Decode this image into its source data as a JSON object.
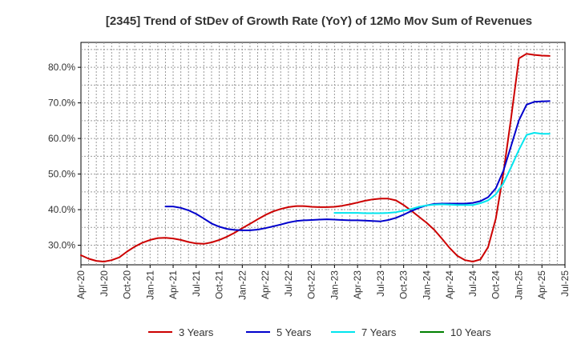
{
  "chart_data": {
    "type": "line",
    "title": "[2345]  Trend of StDev of Growth Rate (YoY) of 12Mo Mov Sum of Revenues",
    "xlabel": "",
    "ylabel": "",
    "ylim": [
      0.245,
      0.87
    ],
    "xlim": [
      "2020-04",
      "2025-07"
    ],
    "yticks": [
      0.3,
      0.4,
      0.5,
      0.6,
      0.7,
      0.8
    ],
    "ytick_labels": [
      "30.0%",
      "40.0%",
      "50.0%",
      "60.0%",
      "70.0%",
      "80.0%"
    ],
    "xtick_dates": [
      "2020-04",
      "2020-07",
      "2020-10",
      "2021-01",
      "2021-04",
      "2021-07",
      "2021-10",
      "2022-01",
      "2022-04",
      "2022-07",
      "2022-10",
      "2023-01",
      "2023-04",
      "2023-07",
      "2023-10",
      "2024-01",
      "2024-04",
      "2024-07",
      "2024-10",
      "2025-01",
      "2025-04",
      "2025-07"
    ],
    "xtick_labels": [
      "Apr-20",
      "Jul-20",
      "Oct-20",
      "Jan-21",
      "Apr-21",
      "Jul-21",
      "Oct-21",
      "Jan-22",
      "Apr-22",
      "Jul-22",
      "Oct-22",
      "Jan-23",
      "Apr-23",
      "Jul-23",
      "Oct-23",
      "Jan-24",
      "Apr-24",
      "Jul-24",
      "Oct-24",
      "Jan-25",
      "Apr-25",
      "Jul-25"
    ],
    "grid": true,
    "legend_position": "bottom",
    "series": [
      {
        "name": "3 Years",
        "color": "#cc0000",
        "points": [
          [
            "2020-04",
            0.272
          ],
          [
            "2020-05",
            0.262
          ],
          [
            "2020-06",
            0.256
          ],
          [
            "2020-07",
            0.254
          ],
          [
            "2020-08",
            0.258
          ],
          [
            "2020-09",
            0.266
          ],
          [
            "2020-10",
            0.282
          ],
          [
            "2020-11",
            0.296
          ],
          [
            "2020-12",
            0.307
          ],
          [
            "2021-01",
            0.315
          ],
          [
            "2021-02",
            0.32
          ],
          [
            "2021-03",
            0.321
          ],
          [
            "2021-04",
            0.319
          ],
          [
            "2021-05",
            0.315
          ],
          [
            "2021-06",
            0.309
          ],
          [
            "2021-07",
            0.305
          ],
          [
            "2021-08",
            0.304
          ],
          [
            "2021-09",
            0.308
          ],
          [
            "2021-10",
            0.315
          ],
          [
            "2021-11",
            0.324
          ],
          [
            "2021-12",
            0.335
          ],
          [
            "2022-01",
            0.348
          ],
          [
            "2022-02",
            0.36
          ],
          [
            "2022-03",
            0.373
          ],
          [
            "2022-04",
            0.385
          ],
          [
            "2022-05",
            0.395
          ],
          [
            "2022-06",
            0.402
          ],
          [
            "2022-07",
            0.407
          ],
          [
            "2022-08",
            0.41
          ],
          [
            "2022-09",
            0.41
          ],
          [
            "2022-10",
            0.408
          ],
          [
            "2022-11",
            0.407
          ],
          [
            "2022-12",
            0.407
          ],
          [
            "2023-01",
            0.408
          ],
          [
            "2023-02",
            0.411
          ],
          [
            "2023-03",
            0.415
          ],
          [
            "2023-04",
            0.42
          ],
          [
            "2023-05",
            0.425
          ],
          [
            "2023-06",
            0.429
          ],
          [
            "2023-07",
            0.431
          ],
          [
            "2023-08",
            0.431
          ],
          [
            "2023-09",
            0.426
          ],
          [
            "2023-10",
            0.413
          ],
          [
            "2023-11",
            0.397
          ],
          [
            "2023-12",
            0.38
          ],
          [
            "2024-01",
            0.363
          ],
          [
            "2024-02",
            0.343
          ],
          [
            "2024-03",
            0.318
          ],
          [
            "2024-04",
            0.292
          ],
          [
            "2024-05",
            0.27
          ],
          [
            "2024-06",
            0.258
          ],
          [
            "2024-07",
            0.254
          ],
          [
            "2024-08",
            0.26
          ],
          [
            "2024-09",
            0.295
          ],
          [
            "2024-10",
            0.375
          ],
          [
            "2024-11",
            0.505
          ],
          [
            "2024-12",
            0.66
          ],
          [
            "2025-01",
            0.825
          ],
          [
            "2025-02",
            0.838
          ],
          [
            "2025-03",
            0.835
          ],
          [
            "2025-04",
            0.833
          ],
          [
            "2025-05",
            0.832
          ]
        ]
      },
      {
        "name": "5 Years",
        "color": "#0000cc",
        "points": [
          [
            "2021-03",
            0.409
          ],
          [
            "2021-04",
            0.409
          ],
          [
            "2021-05",
            0.405
          ],
          [
            "2021-06",
            0.398
          ],
          [
            "2021-07",
            0.388
          ],
          [
            "2021-08",
            0.375
          ],
          [
            "2021-09",
            0.361
          ],
          [
            "2021-10",
            0.352
          ],
          [
            "2021-11",
            0.346
          ],
          [
            "2021-12",
            0.343
          ],
          [
            "2022-01",
            0.342
          ],
          [
            "2022-02",
            0.342
          ],
          [
            "2022-03",
            0.344
          ],
          [
            "2022-04",
            0.348
          ],
          [
            "2022-05",
            0.353
          ],
          [
            "2022-06",
            0.358
          ],
          [
            "2022-07",
            0.364
          ],
          [
            "2022-08",
            0.368
          ],
          [
            "2022-09",
            0.37
          ],
          [
            "2022-10",
            0.371
          ],
          [
            "2022-11",
            0.372
          ],
          [
            "2022-12",
            0.373
          ],
          [
            "2023-01",
            0.372
          ],
          [
            "2023-02",
            0.371
          ],
          [
            "2023-03",
            0.37
          ],
          [
            "2023-04",
            0.37
          ],
          [
            "2023-05",
            0.369
          ],
          [
            "2023-06",
            0.368
          ],
          [
            "2023-07",
            0.367
          ],
          [
            "2023-08",
            0.371
          ],
          [
            "2023-09",
            0.377
          ],
          [
            "2023-10",
            0.386
          ],
          [
            "2023-11",
            0.396
          ],
          [
            "2023-12",
            0.405
          ],
          [
            "2024-01",
            0.412
          ],
          [
            "2024-02",
            0.416
          ],
          [
            "2024-03",
            0.417
          ],
          [
            "2024-04",
            0.417
          ],
          [
            "2024-05",
            0.417
          ],
          [
            "2024-06",
            0.417
          ],
          [
            "2024-07",
            0.419
          ],
          [
            "2024-08",
            0.424
          ],
          [
            "2024-09",
            0.435
          ],
          [
            "2024-10",
            0.46
          ],
          [
            "2024-11",
            0.51
          ],
          [
            "2024-12",
            0.58
          ],
          [
            "2025-01",
            0.651
          ],
          [
            "2025-02",
            0.695
          ],
          [
            "2025-03",
            0.703
          ],
          [
            "2025-04",
            0.704
          ],
          [
            "2025-05",
            0.705
          ]
        ]
      },
      {
        "name": "7 Years",
        "color": "#00e5ee",
        "points": [
          [
            "2023-01",
            0.391
          ],
          [
            "2023-02",
            0.391
          ],
          [
            "2023-03",
            0.391
          ],
          [
            "2023-04",
            0.391
          ],
          [
            "2023-05",
            0.39
          ],
          [
            "2023-06",
            0.39
          ],
          [
            "2023-07",
            0.39
          ],
          [
            "2023-08",
            0.391
          ],
          [
            "2023-09",
            0.393
          ],
          [
            "2023-10",
            0.397
          ],
          [
            "2023-11",
            0.402
          ],
          [
            "2023-12",
            0.408
          ],
          [
            "2024-01",
            0.412
          ],
          [
            "2024-02",
            0.414
          ],
          [
            "2024-03",
            0.415
          ],
          [
            "2024-04",
            0.414
          ],
          [
            "2024-05",
            0.413
          ],
          [
            "2024-06",
            0.413
          ],
          [
            "2024-07",
            0.413
          ],
          [
            "2024-08",
            0.418
          ],
          [
            "2024-09",
            0.426
          ],
          [
            "2024-10",
            0.443
          ],
          [
            "2024-11",
            0.475
          ],
          [
            "2024-12",
            0.52
          ],
          [
            "2025-01",
            0.568
          ],
          [
            "2025-02",
            0.61
          ],
          [
            "2025-03",
            0.616
          ],
          [
            "2025-04",
            0.613
          ],
          [
            "2025-05",
            0.613
          ]
        ]
      },
      {
        "name": "10 Years",
        "color": "#008000",
        "points": []
      }
    ]
  }
}
